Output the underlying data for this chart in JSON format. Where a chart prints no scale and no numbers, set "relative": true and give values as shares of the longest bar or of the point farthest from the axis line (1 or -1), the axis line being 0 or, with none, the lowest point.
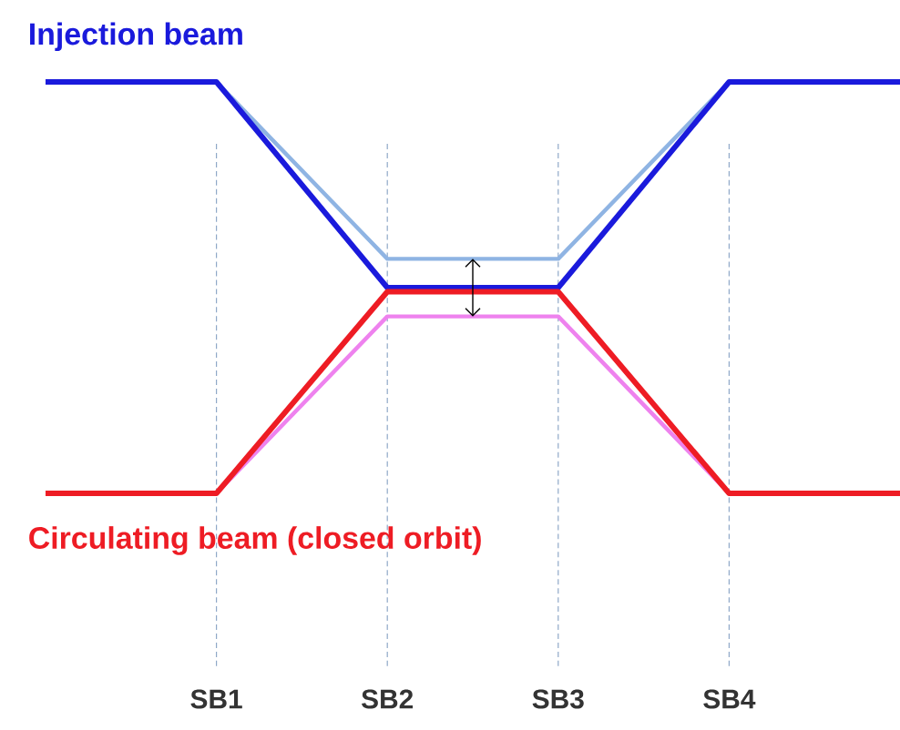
{
  "chart_data": {
    "type": "line",
    "relative": true,
    "grid": "x",
    "marker": "none",
    "line_style": "solid",
    "categories": [
      null,
      "SB1",
      "SB2",
      "SB3",
      "SB4",
      null
    ],
    "series": [
      {
        "color": "#8fb4e3",
        "values": [
          null,
          1,
          0.57,
          0.57,
          1,
          null
        ]
      },
      {
        "color": "#ee82ee",
        "values": [
          null,
          0,
          0.43,
          0.43,
          0,
          null
        ]
      },
      {
        "name": "Injection beam",
        "color": "#1a1adc",
        "values": [
          1,
          1,
          0.5,
          0.5,
          1,
          1
        ]
      },
      {
        "name": "Circulating beam (closed orbit)",
        "color": "#ee1c24",
        "values": [
          0,
          0,
          0.49,
          0.49,
          0,
          0
        ]
      }
    ]
  }
}
